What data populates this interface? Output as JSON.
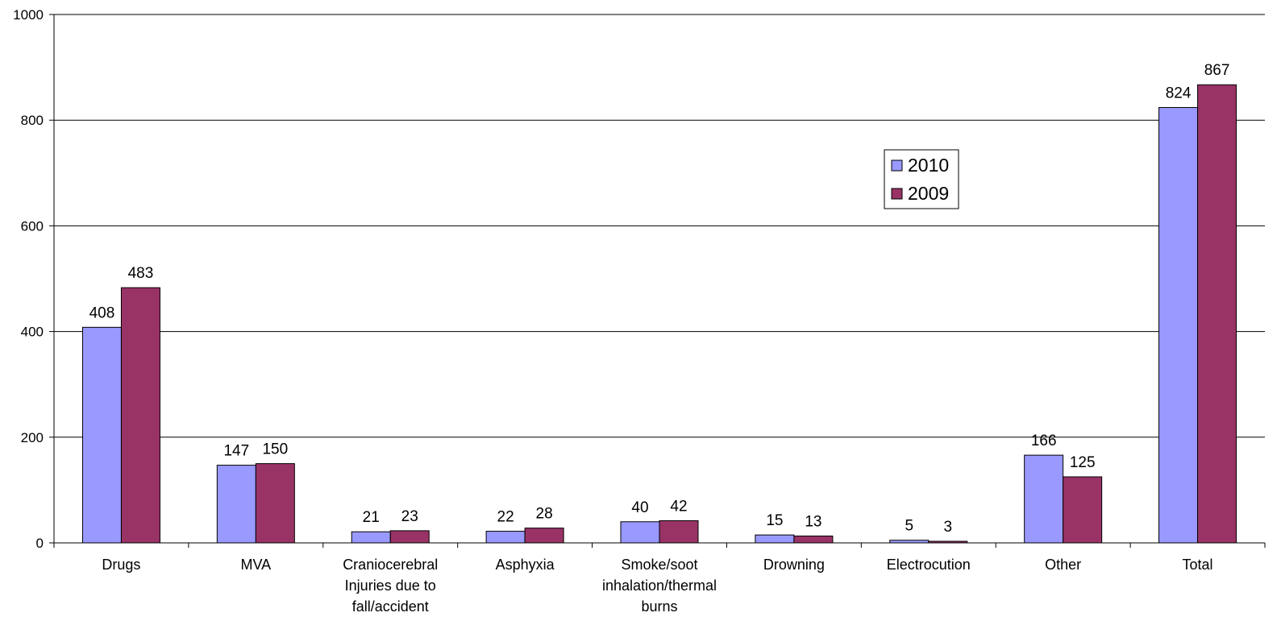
{
  "chart_data": {
    "type": "bar",
    "categories": [
      [
        "Drugs"
      ],
      [
        "MVA"
      ],
      [
        "Craniocerebral",
        "Injuries due to",
        "fall/accident"
      ],
      [
        "Asphyxia"
      ],
      [
        "Smoke/soot",
        "inhalation/thermal",
        "burns"
      ],
      [
        "Drowning"
      ],
      [
        "Electrocution"
      ],
      [
        "Other"
      ],
      [
        "Total"
      ]
    ],
    "series": [
      {
        "name": "2010",
        "color": "#9999FF",
        "values": [
          408,
          147,
          21,
          22,
          40,
          15,
          5,
          166,
          824
        ]
      },
      {
        "name": "2009",
        "color": "#993366",
        "values": [
          483,
          150,
          23,
          28,
          42,
          13,
          3,
          125,
          867
        ]
      }
    ],
    "y_ticks": [
      "0",
      "200",
      "400",
      "600",
      "800",
      "1000"
    ],
    "ylim": [
      0,
      1000
    ],
    "grid": true,
    "legend_position": "upper-right-center"
  }
}
